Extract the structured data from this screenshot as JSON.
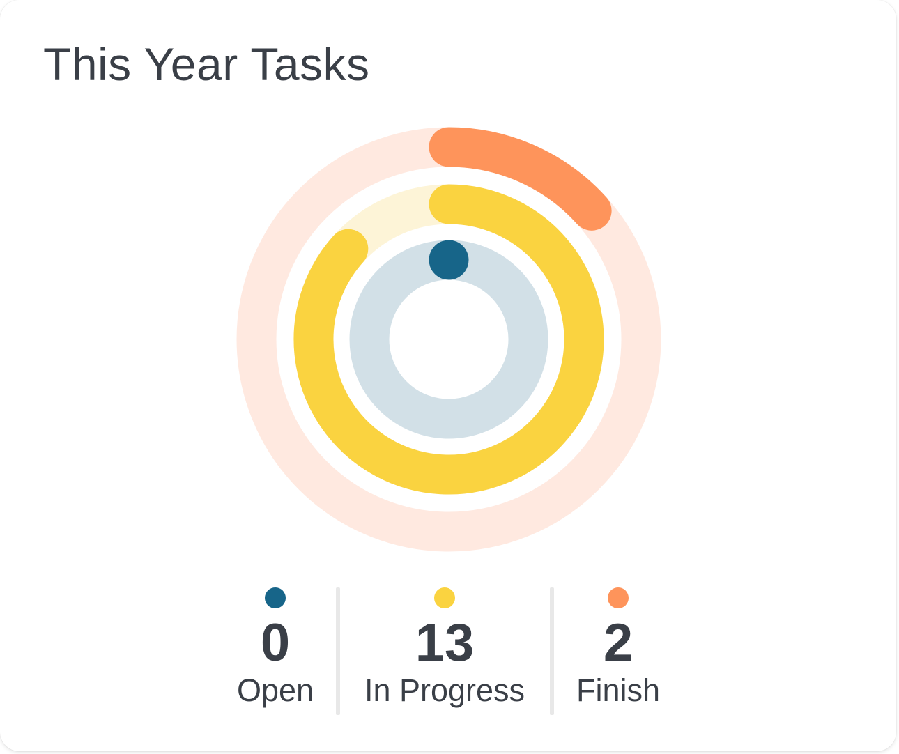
{
  "card": {
    "title": "This Year Tasks"
  },
  "chart_data": {
    "type": "radial-bar",
    "title": "This Year Tasks",
    "categories": [
      "Open",
      "In Progress",
      "Finish"
    ],
    "values": [
      0,
      13,
      2
    ],
    "max": 15,
    "colors": {
      "Open": "#176589",
      "In Progress": "#fad340",
      "Finish": "#fe945b"
    },
    "track_colors": {
      "Open": "#d2e0e7",
      "In Progress": "#fdf4d7",
      "Finish": "#ffe9e0"
    }
  },
  "legend": [
    {
      "name": "Open",
      "value": "0",
      "color": "#176589"
    },
    {
      "name": "In Progress",
      "value": "13",
      "color": "#fad340"
    },
    {
      "name": "Finish",
      "value": "2",
      "color": "#fe945b"
    }
  ]
}
